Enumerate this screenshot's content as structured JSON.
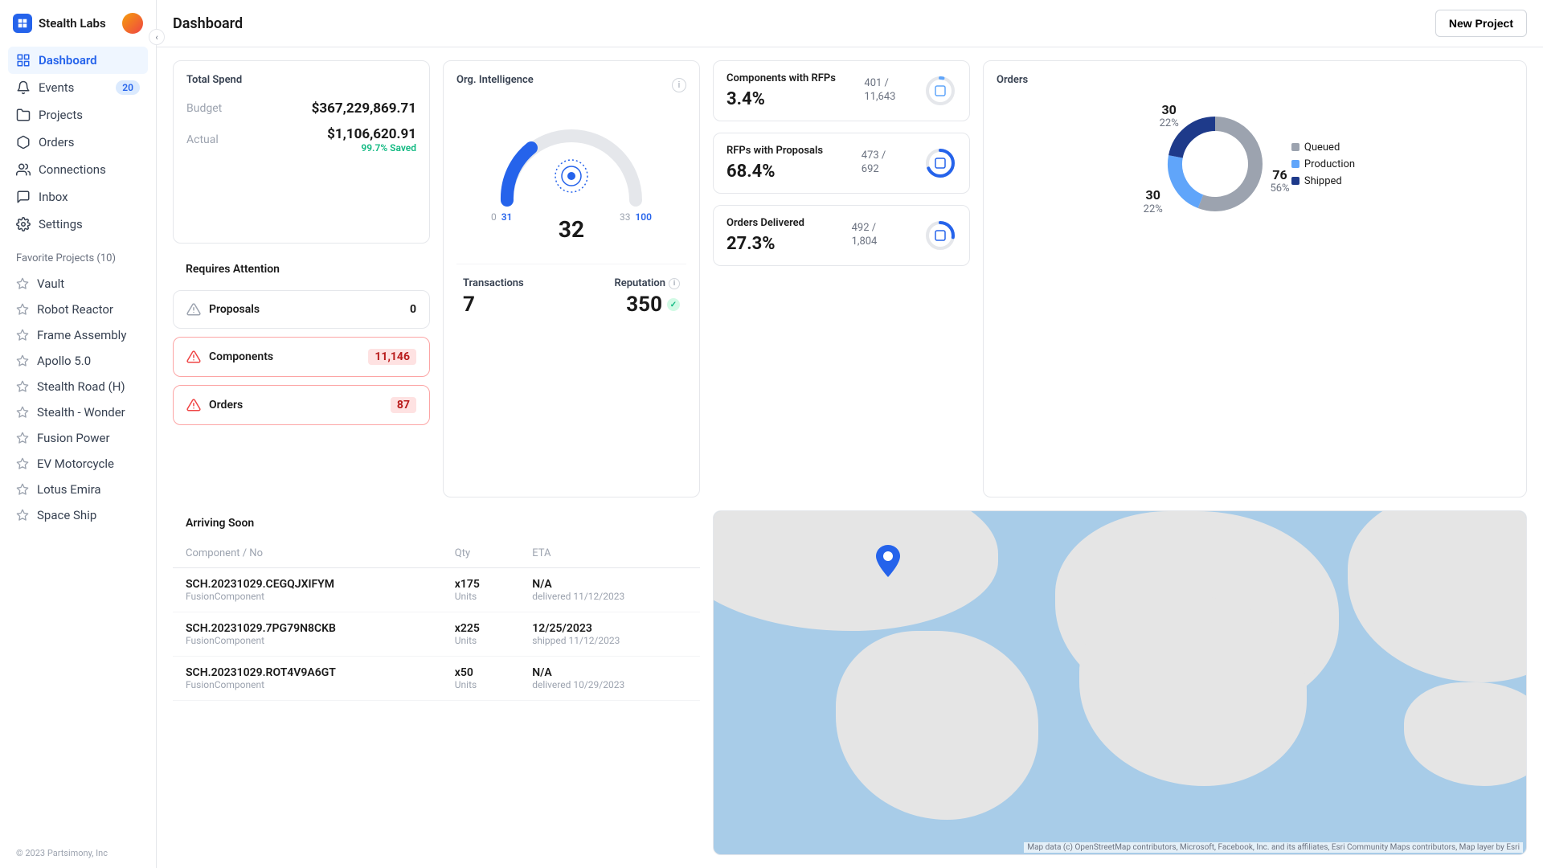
{
  "org": {
    "name": "Stealth Labs"
  },
  "topbar": {
    "title": "Dashboard",
    "new_project": "New Project"
  },
  "nav": {
    "items": [
      {
        "label": "Dashboard",
        "icon": "grid",
        "active": true
      },
      {
        "label": "Events",
        "icon": "bell",
        "badge": "20"
      },
      {
        "label": "Projects",
        "icon": "folder"
      },
      {
        "label": "Orders",
        "icon": "box"
      },
      {
        "label": "Connections",
        "icon": "users"
      },
      {
        "label": "Inbox",
        "icon": "message"
      },
      {
        "label": "Settings",
        "icon": "gear"
      }
    ],
    "favorites_label": "Favorite Projects (10)",
    "favorites": [
      "Vault",
      "Robot Reactor",
      "Frame Assembly",
      "Apollo 5.0",
      "Stealth Road (H)",
      "Stealth - Wonder",
      "Fusion Power",
      "EV Motorcycle",
      "Lotus Emira",
      "Space Ship"
    ]
  },
  "footer": "© 2023 Partsimony, Inc",
  "spend": {
    "title": "Total Spend",
    "budget_label": "Budget",
    "budget": "$367,229,869.71",
    "actual_label": "Actual",
    "actual": "$1,106,620.91",
    "saved": "99.7% Saved"
  },
  "attention": {
    "title": "Requires Attention",
    "items": [
      {
        "label": "Proposals",
        "count": "0",
        "warn": false
      },
      {
        "label": "Components",
        "count": "11,146",
        "warn": true
      },
      {
        "label": "Orders",
        "count": "87",
        "warn": true
      }
    ]
  },
  "intel": {
    "title": "Org. Intelligence",
    "value": "32",
    "range": {
      "min": "0",
      "low": "31",
      "high": "33",
      "max": "100"
    },
    "transactions_label": "Transactions",
    "transactions": "7",
    "reputation_label": "Reputation",
    "reputation": "350",
    "gauge_color": "#2563eb",
    "gauge_bg": "#e5e7eb"
  },
  "kpis": [
    {
      "title": "Components with RFPs",
      "pct": "3.4%",
      "num": "401",
      "den": "11,643",
      "fill": 3.4,
      "color": "#60a5fa"
    },
    {
      "title": "RFPs with Proposals",
      "pct": "68.4%",
      "num": "473",
      "den": "692",
      "fill": 68.4,
      "color": "#2563eb"
    },
    {
      "title": "Orders Delivered",
      "pct": "27.3%",
      "num": "492",
      "den": "1,804",
      "fill": 27.3,
      "color": "#2563eb"
    }
  ],
  "orders_chart": {
    "title": "Orders",
    "segments": [
      {
        "label": "Queued",
        "value": 76,
        "pct": "56%",
        "color": "#9ca3af"
      },
      {
        "label": "Production",
        "value": 30,
        "pct": "22%",
        "color": "#60a5fa"
      },
      {
        "label": "Shipped",
        "value": 30,
        "pct": "22%",
        "color": "#1e3a8a"
      }
    ]
  },
  "arriving": {
    "title": "Arriving Soon",
    "columns": [
      "Component / No",
      "Qty",
      "ETA"
    ],
    "rows": [
      {
        "name": "SCH.20231029.CEGQJXIFYM",
        "sub": "FusionComponent",
        "qty": "x175",
        "qty_sub": "Units",
        "eta": "N/A",
        "eta_sub": "delivered 11/12/2023"
      },
      {
        "name": "SCH.20231029.7PG79N8CKB",
        "sub": "FusionComponent",
        "qty": "x225",
        "qty_sub": "Units",
        "eta": "12/25/2023",
        "eta_sub": "shipped 11/12/2023"
      },
      {
        "name": "SCH.20231029.ROT4V9A6GT",
        "sub": "FusionComponent",
        "qty": "x50",
        "qty_sub": "Units",
        "eta": "N/A",
        "eta_sub": "delivered 10/29/2023"
      }
    ]
  },
  "map": {
    "attribution": "Map data (c) OpenStreetMap contributors, Microsoft, Facebook, Inc. and its affiliates, Esri Community Maps contributors, Map layer by Esri",
    "pin_color": "#2563eb",
    "water": "#a8cce8",
    "land": "#e5e5e5"
  }
}
